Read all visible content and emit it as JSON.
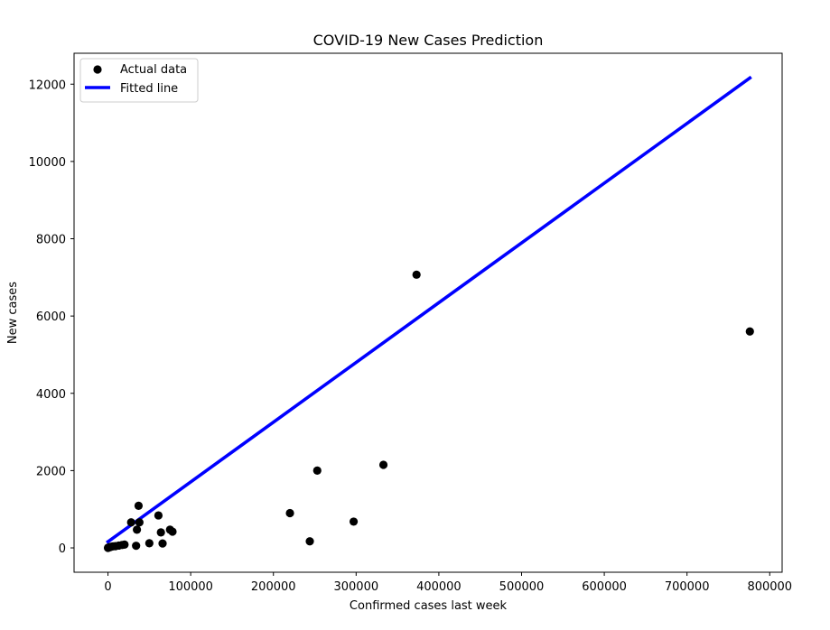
{
  "chart_data": {
    "type": "scatter",
    "title": "COVID-19 New Cases Prediction",
    "xlabel": "Confirmed cases last week",
    "ylabel": "New cases",
    "xlim": [
      -41000,
      815000
    ],
    "ylim": [
      -630,
      12800
    ],
    "xticks": [
      0,
      100000,
      200000,
      300000,
      400000,
      500000,
      600000,
      700000,
      800000
    ],
    "yticks": [
      0,
      2000,
      4000,
      6000,
      8000,
      10000,
      12000
    ],
    "grid": false,
    "legend_position": "top-left",
    "series": [
      {
        "name": "Actual data",
        "kind": "scatter",
        "color": "#000000",
        "points": [
          [
            0,
            0
          ],
          [
            300,
            5
          ],
          [
            800,
            10
          ],
          [
            1500,
            15
          ],
          [
            2500,
            20
          ],
          [
            4000,
            30
          ],
          [
            6000,
            40
          ],
          [
            9000,
            45
          ],
          [
            13000,
            60
          ],
          [
            17000,
            75
          ],
          [
            20000,
            85
          ],
          [
            28000,
            660
          ],
          [
            34000,
            55
          ],
          [
            35000,
            470
          ],
          [
            37000,
            1090
          ],
          [
            38000,
            660
          ],
          [
            50000,
            120
          ],
          [
            61000,
            840
          ],
          [
            64000,
            400
          ],
          [
            66000,
            115
          ],
          [
            75000,
            470
          ],
          [
            78000,
            420
          ],
          [
            220000,
            900
          ],
          [
            244000,
            170
          ],
          [
            253000,
            2000
          ],
          [
            297000,
            680
          ],
          [
            333000,
            2150
          ],
          [
            373000,
            7070
          ],
          [
            776000,
            5600
          ]
        ]
      },
      {
        "name": "Fitted line",
        "kind": "line",
        "color": "#0000ff",
        "points": [
          [
            0,
            160
          ],
          [
            776000,
            12160
          ]
        ]
      }
    ]
  }
}
